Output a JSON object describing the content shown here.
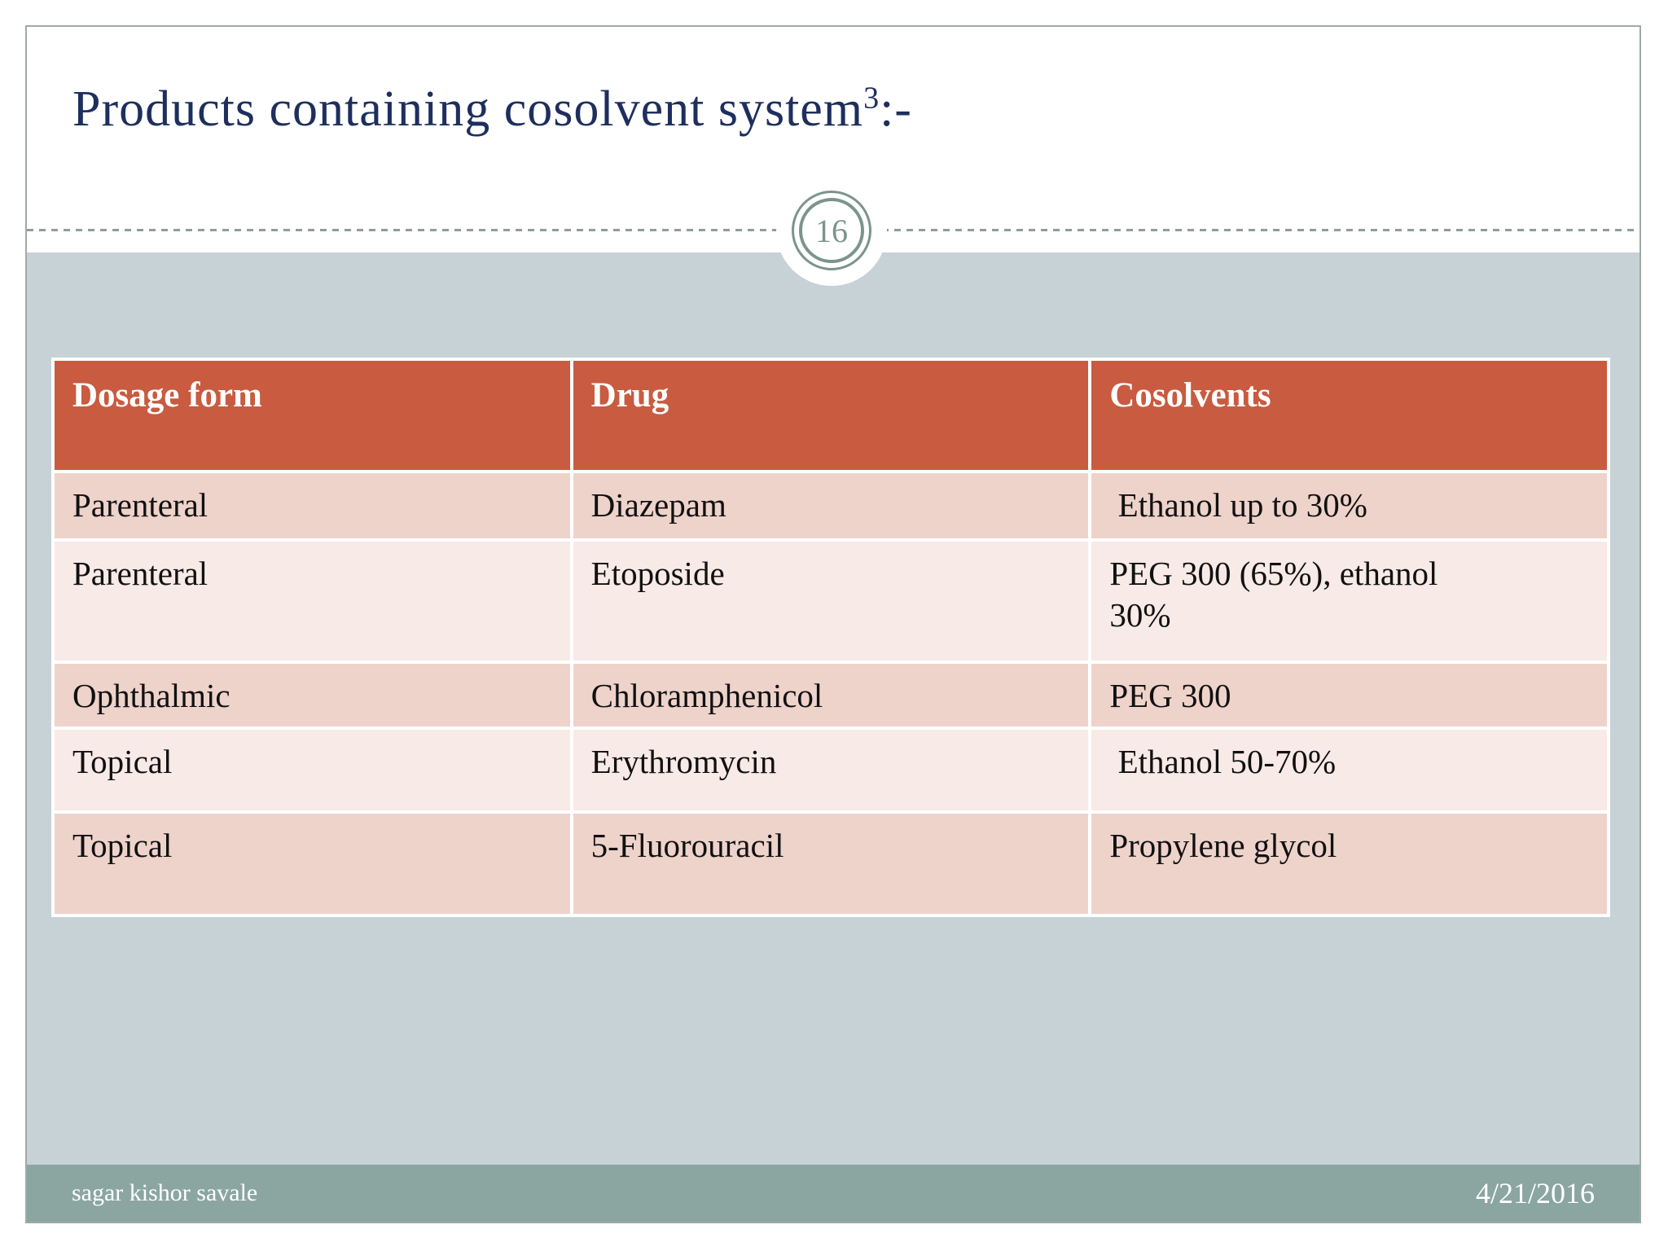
{
  "slide": {
    "title": "Products containing cosolvent system",
    "title_superscript": "3",
    "title_suffix": ":-",
    "page_number": "16"
  },
  "table": {
    "headers": [
      "Dosage form",
      "Drug",
      "Cosolvents"
    ],
    "rows": [
      [
        "Parenteral",
        "Diazepam",
        " Ethanol up to 30%"
      ],
      [
        "Parenteral",
        "Etoposide",
        "PEG 300 (65%), ethanol\n30%"
      ],
      [
        "Ophthalmic",
        "Chloramphenicol",
        "PEG 300"
      ],
      [
        "Topical",
        "Erythromycin",
        " Ethanol 50-70%"
      ],
      [
        "Topical",
        "5-Fluorouracil",
        "Propylene glycol"
      ]
    ]
  },
  "footer": {
    "author": "sagar kishor savale",
    "date": "4/21/2016"
  },
  "colors": {
    "header_bg": "#C85B40",
    "row_dark": "#EED3CB",
    "row_light": "#F8EAE7",
    "background_band": "#C7D2D6",
    "footer_bg": "#8BA6A1",
    "title_color": "#1E2F5E",
    "ring_color": "#7B948D",
    "dash_color": "#8D9E99",
    "slide_border": "#9FA9A5"
  }
}
